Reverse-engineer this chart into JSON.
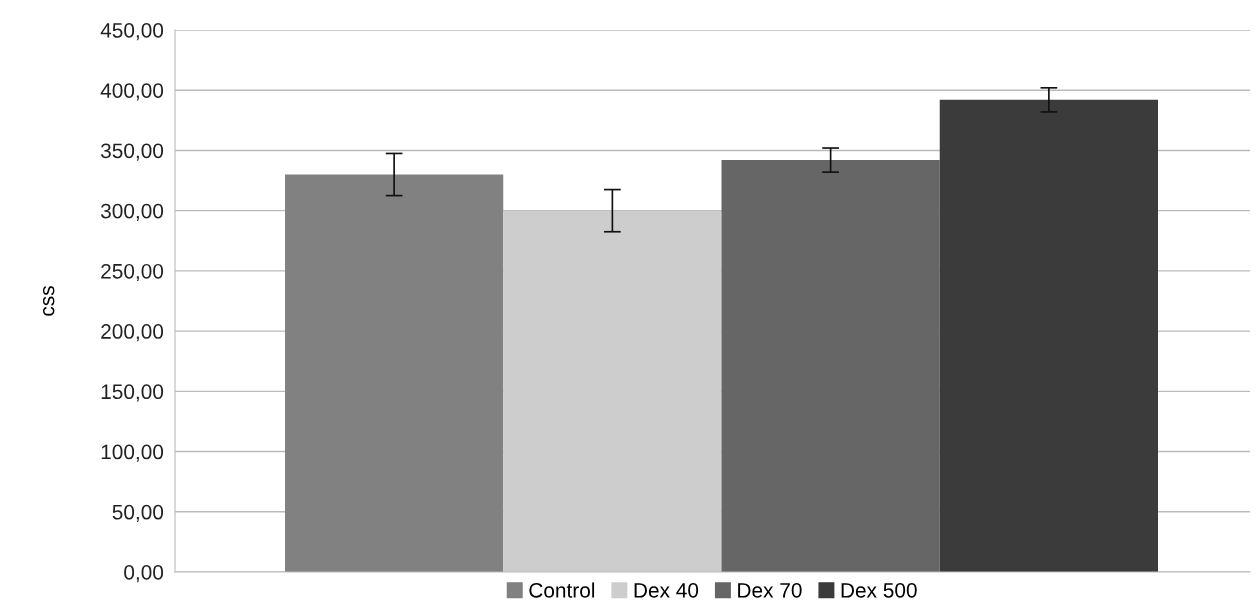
{
  "chart_data": {
    "type": "bar",
    "ylabel": "css",
    "categories": [
      null
    ],
    "series": [
      {
        "name": "Control",
        "color": "#818181",
        "values": [
          330
        ],
        "errors": [
          17.5
        ]
      },
      {
        "name": "Dex 40",
        "color": "#cdcdcd",
        "values": [
          300
        ],
        "errors": [
          17.5
        ]
      },
      {
        "name": "Dex 70",
        "color": "#666666",
        "values": [
          342
        ],
        "errors": [
          10
        ]
      },
      {
        "name": "Dex 500",
        "color": "#3b3b3b",
        "values": [
          392
        ],
        "errors": [
          10
        ]
      }
    ],
    "ylim": [
      0,
      450
    ],
    "yticks": [
      {
        "value": 0,
        "label": "0,00"
      },
      {
        "value": 50,
        "label": "50,00"
      },
      {
        "value": 100,
        "label": "100,00"
      },
      {
        "value": 150,
        "label": "150,00"
      },
      {
        "value": 200,
        "label": "200,00"
      },
      {
        "value": 250,
        "label": "250,00"
      },
      {
        "value": 300,
        "label": "300,00"
      },
      {
        "value": 350,
        "label": "350,00"
      },
      {
        "value": 400,
        "label": "400,00"
      },
      {
        "value": 450,
        "label": "450,00"
      }
    ],
    "grid": "y",
    "legend": "bottom"
  }
}
